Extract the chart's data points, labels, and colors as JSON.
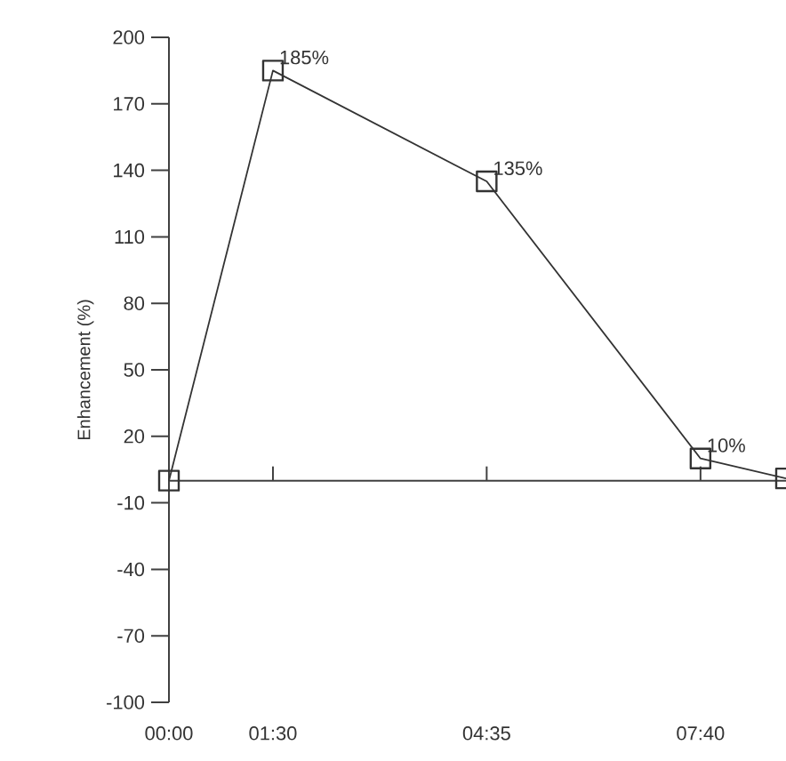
{
  "chart_data": {
    "type": "line",
    "ylabel": "Enhancement (%)",
    "x": [
      0,
      1.5,
      4.583,
      7.667,
      8.9
    ],
    "series": [
      {
        "color": "#333333",
        "values": [
          0,
          185,
          135,
          10,
          1
        ],
        "value_labels": [
          null,
          "185%",
          "135%",
          "10%",
          null
        ]
      }
    ],
    "xlim": [
      0,
      8.9
    ],
    "xticks": [
      {
        "value": 0,
        "label": "00:00"
      },
      {
        "value": 1.5,
        "label": "01:30"
      },
      {
        "value": 4.583,
        "label": "04:35"
      },
      {
        "value": 7.667,
        "label": "07:40"
      }
    ],
    "ylim": [
      -100,
      200
    ],
    "yticks": [
      200,
      170,
      140,
      110,
      80,
      50,
      20,
      -10,
      -40,
      -70,
      -100
    ],
    "marker": "square",
    "line_style": "solid",
    "grid": false,
    "legend": false
  }
}
